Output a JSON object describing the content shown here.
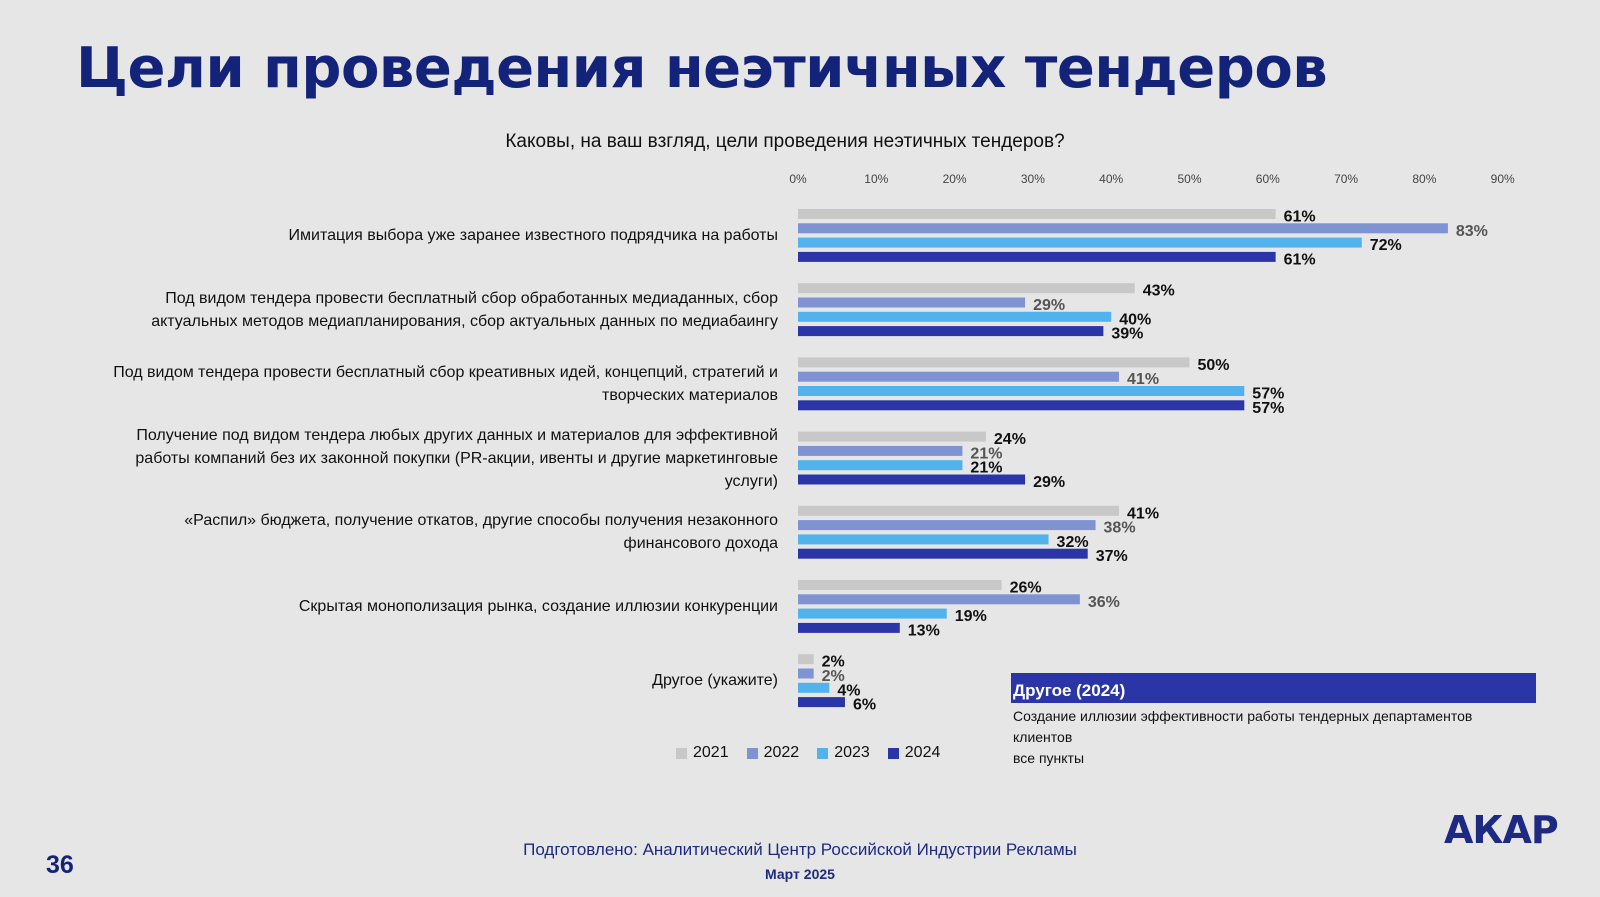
{
  "title": "Цели проведения неэтичных тендеров",
  "question": "Каковы, на ваш взгляд, цели проведения неэтичных тендеров?",
  "colors": {
    "2021": "#c8c8c8",
    "2022": "#7f92d2",
    "2023": "#52b2ec",
    "2024": "#2a35a8"
  },
  "label_colors": {
    "2021": "#111111",
    "2022": "#555555",
    "2023": "#111111",
    "2024": "#111111"
  },
  "chart_data": {
    "type": "bar",
    "orientation": "horizontal",
    "xlim": [
      0,
      90
    ],
    "xticks": [
      "0%",
      "10%",
      "20%",
      "30%",
      "40%",
      "50%",
      "60%",
      "70%",
      "80%",
      "90%"
    ],
    "grid": false,
    "legend_position": "bottom",
    "categories": [
      "Имитация выбора уже заранее известного подрядчика на работы",
      "Под видом тендера провести бесплатный сбор обработанных медиаданных, сбор актуальных методов медиапланирования, сбор актуальных данных по медиабаингу",
      "Под видом тендера провести бесплатный сбор креативных идей, концепций, стратегий и творческих материалов",
      "Получение под видом тендера любых других данных и материалов для эффективной работы компаний без их законной покупки (PR-акции, ивенты и другие маркетинговые услуги)",
      "«Распил» бюджета, получение откатов, другие способы получения незаконного финансового дохода",
      "Скрытая монополизация рынка, создание иллюзии конкуренции",
      "Другое (укажите)"
    ],
    "category_lines": [
      [
        "Имитация выбора уже заранее известного подрядчика на работы"
      ],
      [
        "Под видом тендера провести бесплатный сбор обработанных медиаданных, сбор",
        "актуальных методов медиапланирования, сбор актуальных данных по медиабаингу"
      ],
      [
        "Под видом тендера провести бесплатный сбор креативных идей, концепций, стратегий и",
        "творческих материалов"
      ],
      [
        "Получение под видом тендера любых других данных и материалов для эффективной",
        "работы компаний без их законной покупки (PR-акции, ивенты и другие маркетинговые",
        "услуги)"
      ],
      [
        "«Распил» бюджета, получение откатов, другие способы получения незаконного",
        "финансового дохода"
      ],
      [
        "Скрытая монополизация рынка, создание иллюзии конкуренции"
      ],
      [
        "Другое (укажите)"
      ]
    ],
    "series": [
      {
        "name": "2021",
        "values": [
          61,
          43,
          50,
          24,
          41,
          26,
          2
        ],
        "labels": [
          "61%",
          "43%",
          "50%",
          "24%",
          "41%",
          "26%",
          "2%"
        ]
      },
      {
        "name": "2022",
        "values": [
          83,
          29,
          41,
          21,
          38,
          36,
          2
        ],
        "labels": [
          "83%",
          "29%",
          "41%",
          "21%",
          "38%",
          "36%",
          "2%"
        ]
      },
      {
        "name": "2023",
        "values": [
          72,
          40,
          57,
          21,
          32,
          19,
          4
        ],
        "labels": [
          "72%",
          "40%",
          "57%",
          "21%",
          "32%",
          "19%",
          "4%"
        ]
      },
      {
        "name": "2024",
        "values": [
          61,
          39,
          57,
          29,
          37,
          13,
          6
        ],
        "labels": [
          "61%",
          "39%",
          "57%",
          "29%",
          "37%",
          "13%",
          "6%"
        ]
      }
    ]
  },
  "other_box": {
    "title": "Другое (2024)",
    "lines": [
      "Создание иллюзии эффективности работы тендерных департаментов клиентов",
      "все пункты"
    ]
  },
  "footer": {
    "credit": "Подготовлено: Аналитический Центр Российской Индустрии Рекламы",
    "date": "Март 2025"
  },
  "page_number": "36",
  "logo": "АКАР"
}
